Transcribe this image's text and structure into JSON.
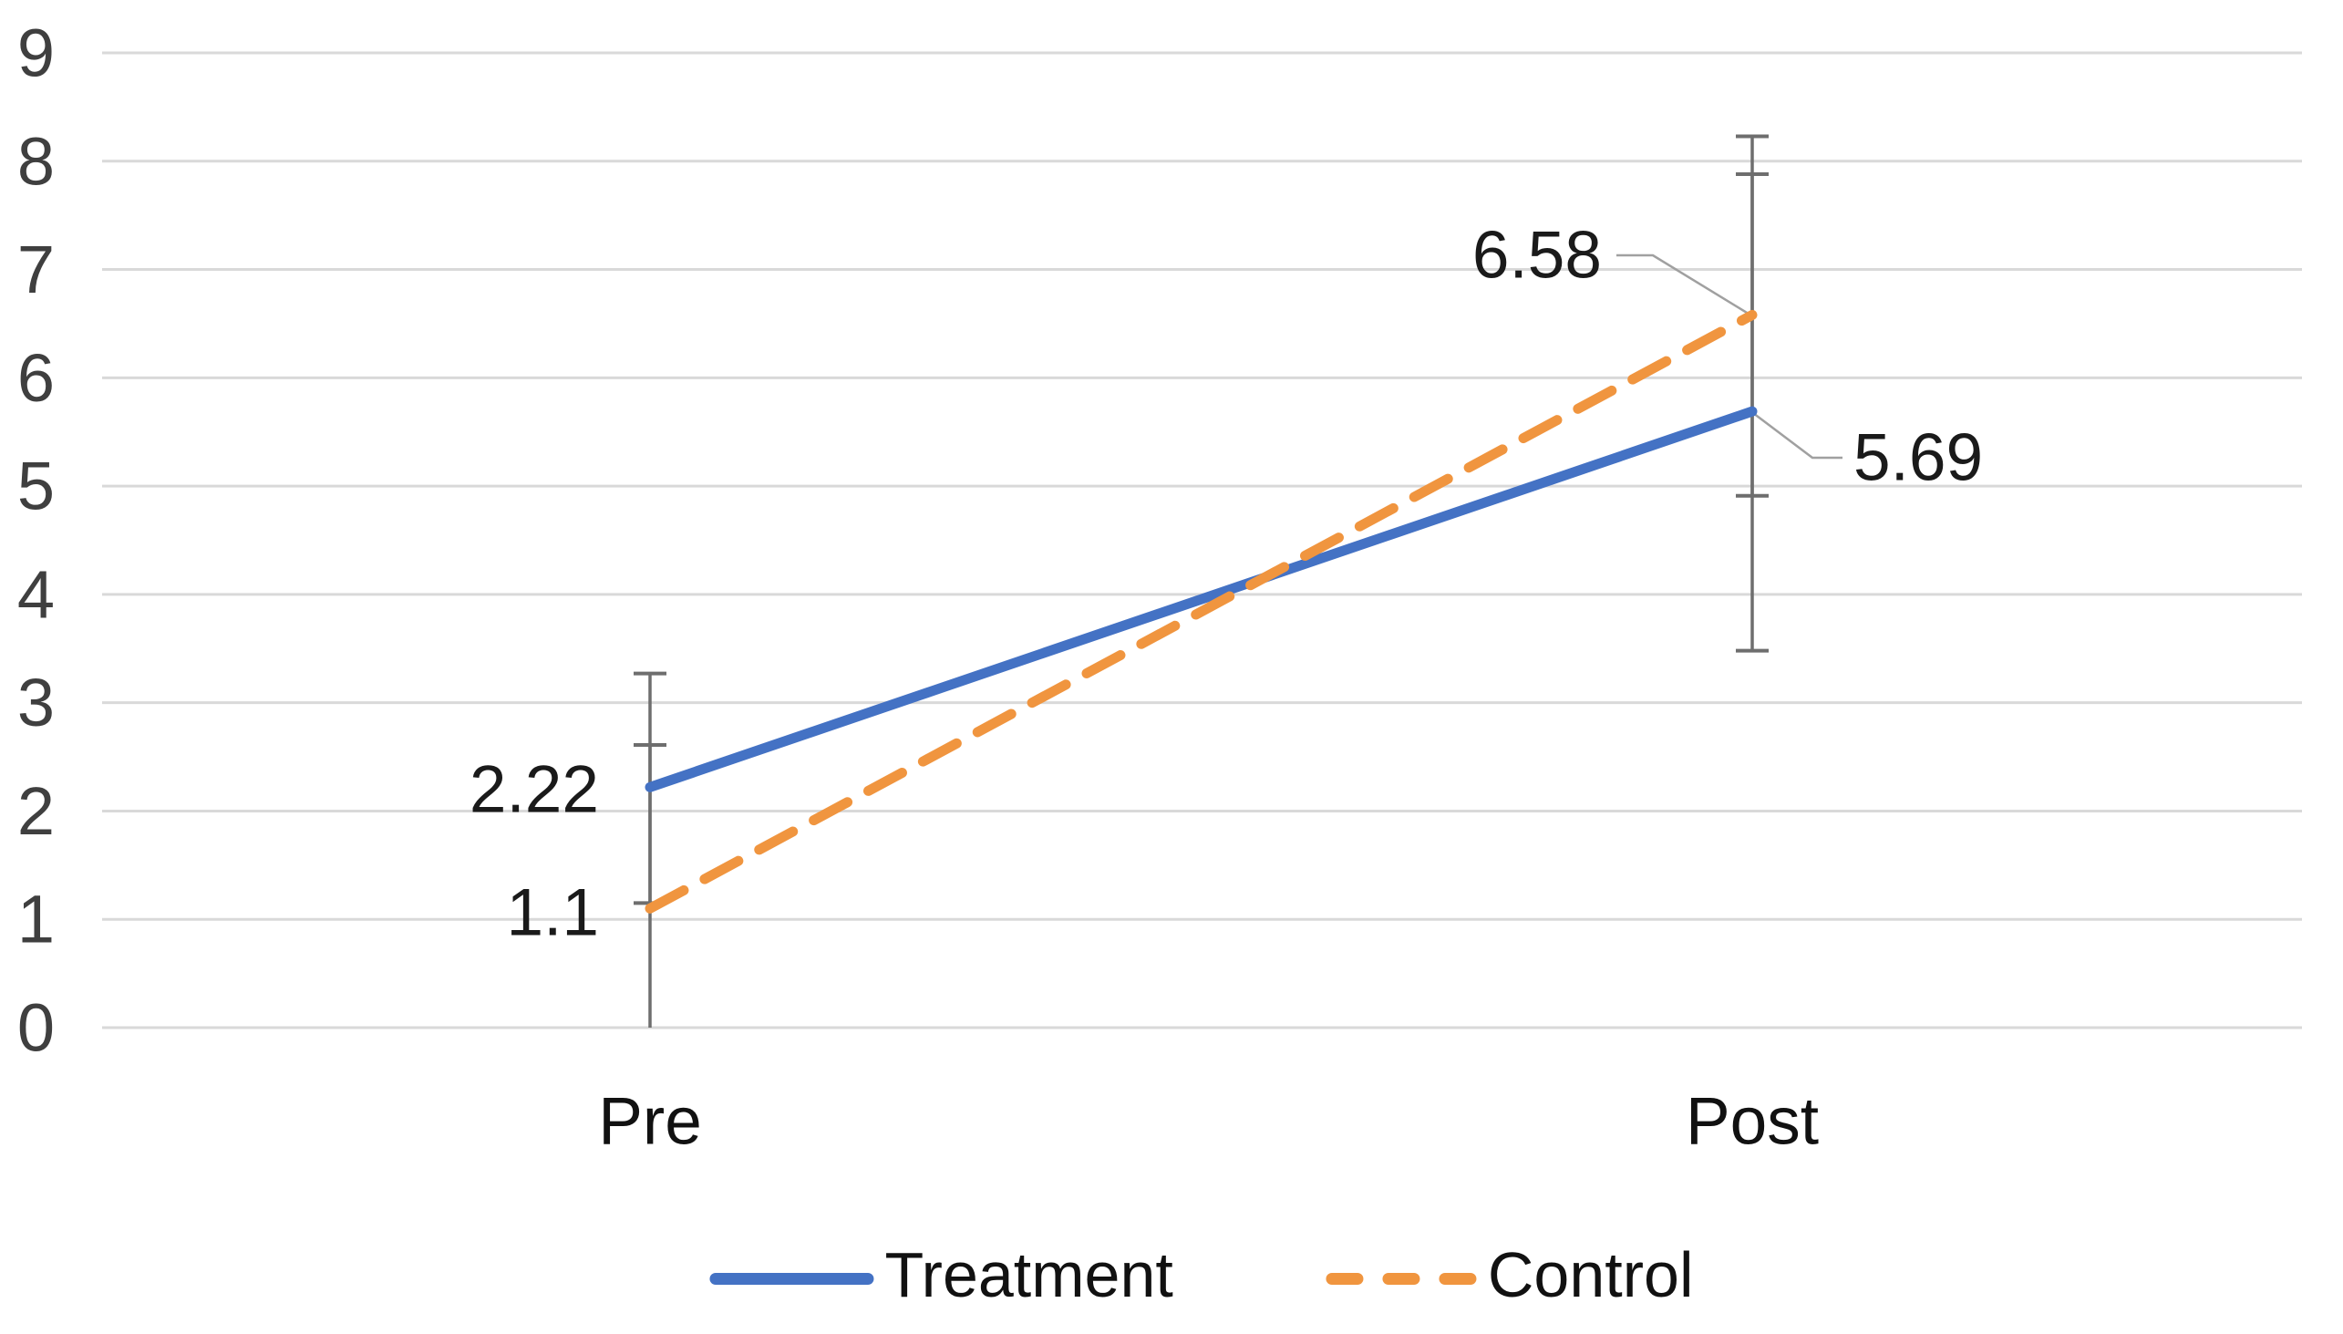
{
  "chart_data": {
    "type": "line",
    "title": "",
    "categories": [
      "Pre",
      "Post"
    ],
    "series": [
      {
        "name": "Treatment",
        "values": [
          2.22,
          5.69
        ],
        "color": "#4472C4",
        "line_style": "solid",
        "error_bars": [
          {
            "upper": 3.27,
            "lower": 1.15,
            "lower_cap": true
          },
          {
            "upper": 7.88,
            "lower": 3.48,
            "lower_cap": true
          }
        ]
      },
      {
        "name": "Control",
        "values": [
          1.1,
          6.58
        ],
        "color": "#F0953F",
        "line_style": "dashed",
        "error_bars": [
          {
            "upper": 2.61,
            "lower": 0,
            "lower_cap": false
          },
          {
            "upper": 8.23,
            "lower": 4.91,
            "lower_cap": true
          }
        ]
      }
    ],
    "data_labels": [
      {
        "text": "2.22",
        "series": "Treatment",
        "category": "Pre",
        "placement": "left"
      },
      {
        "text": "1.1",
        "series": "Control",
        "category": "Pre",
        "placement": "left"
      },
      {
        "text": "6.58",
        "series": "Control",
        "category": "Post",
        "placement": "callout-above-left"
      },
      {
        "text": "5.69",
        "series": "Treatment",
        "category": "Post",
        "placement": "callout-below-right"
      }
    ],
    "yticks": [
      "0",
      "1",
      "2",
      "3",
      "4",
      "5",
      "6",
      "7",
      "8",
      "9"
    ],
    "ylim": [
      0,
      9
    ],
    "xlabel": "",
    "ylabel": "",
    "grid": true,
    "legend_position": "bottom"
  },
  "colors": {
    "treatment": "#4472C4",
    "control": "#F0953F",
    "gridline": "#D9D9D9",
    "error_bar": "#6E6E6E",
    "leader_line": "#A0A0A0",
    "tick_label": "#3F3F3F",
    "data_label": "#1A1A1A",
    "category_label": "#111111",
    "background": "#FFFFFF"
  }
}
